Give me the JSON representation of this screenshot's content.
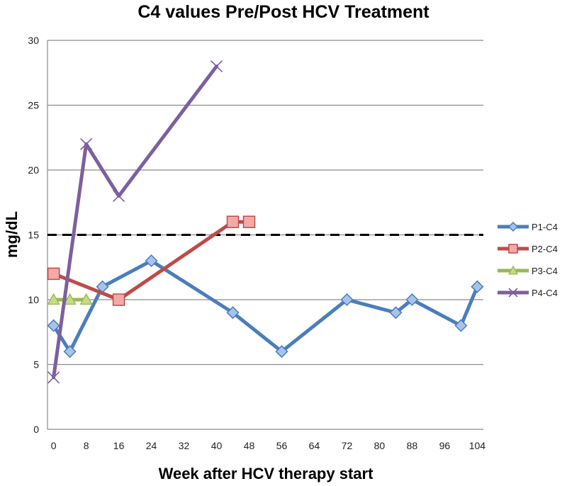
{
  "chart_data": {
    "type": "line",
    "title": "C4 values Pre/Post HCV Treatment",
    "xlabel": "Week after HCV therapy start",
    "ylabel": "mg/dL",
    "xlim": [
      -1.5,
      105.5
    ],
    "ylim": [
      0,
      30
    ],
    "xticks": [
      "0",
      "8",
      "16",
      "24",
      "32",
      "40",
      "48",
      "56",
      "64",
      "72",
      "80",
      "88",
      "96",
      "104"
    ],
    "xtick_values": [
      0,
      8,
      16,
      24,
      32,
      40,
      48,
      56,
      64,
      72,
      80,
      88,
      96,
      104
    ],
    "yticks": [
      "0",
      "5",
      "10",
      "15",
      "20",
      "25",
      "30"
    ],
    "ytick_values": [
      0,
      5,
      10,
      15,
      20,
      25,
      30
    ],
    "grid": true,
    "legend_position": "right",
    "reference_line": {
      "y": 15,
      "style": "dashed",
      "color": "#000000"
    },
    "series": [
      {
        "name": "P1-C4",
        "color": "#4a7ebb",
        "marker": "diamond",
        "x": [
          0,
          4,
          12,
          24,
          44,
          56,
          72,
          84,
          88,
          100,
          104
        ],
        "y": [
          8,
          6,
          11,
          13,
          9,
          6,
          10,
          9,
          10,
          8,
          11
        ]
      },
      {
        "name": "P2-C4",
        "color": "#be4b48",
        "marker": "square",
        "x": [
          0,
          16,
          44,
          48
        ],
        "y": [
          12,
          10,
          16,
          16
        ]
      },
      {
        "name": "P3-C4",
        "color": "#98b954",
        "marker": "triangle",
        "x": [
          0,
          4,
          8
        ],
        "y": [
          10,
          10,
          10
        ]
      },
      {
        "name": "P4-C4",
        "color": "#7d5fa0",
        "marker": "x",
        "x": [
          0,
          8,
          16,
          40
        ],
        "y": [
          4,
          22,
          18,
          28
        ]
      }
    ]
  }
}
